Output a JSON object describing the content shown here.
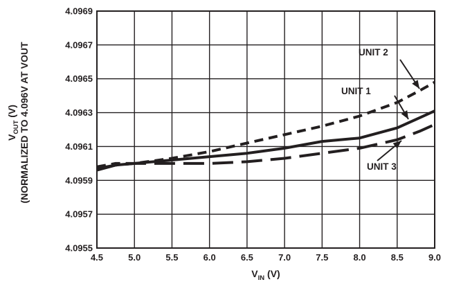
{
  "chart_data": {
    "type": "line",
    "xlabel": {
      "main": "V",
      "sub": "IN",
      "unit": " (V)"
    },
    "ylabel": {
      "main": "V",
      "sub": "OUT",
      "unit": " (V)",
      "line2": "(NORMALIZED TO 4.096V AT VOUT"
    },
    "xlim": [
      4.5,
      9.0
    ],
    "ylim": [
      4.0955,
      4.0969
    ],
    "xticks": [
      "4.5",
      "5.0",
      "5.5",
      "6.0",
      "6.5",
      "7.0",
      "7.5",
      "8.0",
      "8.5",
      "9.0"
    ],
    "yticks": [
      "4.0955",
      "4.0957",
      "4.0959",
      "4.0961",
      "4.0963",
      "4.0965",
      "4.0967",
      "4.0969"
    ],
    "grid": true,
    "series": [
      {
        "name": "UNIT 1",
        "style": "solid",
        "x": [
          4.5,
          4.75,
          5.0,
          5.5,
          6.0,
          6.5,
          7.0,
          7.5,
          8.0,
          8.5,
          8.8,
          9.0
        ],
        "y": [
          4.09597,
          4.09599,
          4.096,
          4.09602,
          4.09604,
          4.09606,
          4.09609,
          4.09613,
          4.09615,
          4.09621,
          4.09627,
          4.09631
        ]
      },
      {
        "name": "UNIT 2",
        "style": "short-dash",
        "x": [
          4.5,
          4.75,
          5.0,
          5.5,
          6.0,
          6.5,
          7.0,
          7.5,
          8.0,
          8.5,
          8.8,
          9.0
        ],
        "y": [
          4.09598,
          4.096,
          4.096,
          4.09603,
          4.09607,
          4.09612,
          4.09617,
          4.09622,
          4.09628,
          4.09636,
          4.09643,
          4.09648
        ]
      },
      {
        "name": "UNIT 3",
        "style": "long-dash",
        "x": [
          4.5,
          4.75,
          5.0,
          5.5,
          6.0,
          6.5,
          7.0,
          7.5,
          8.0,
          8.5,
          8.8,
          9.0
        ],
        "y": [
          4.09596,
          4.09599,
          4.096,
          4.096,
          4.096,
          4.09601,
          4.09603,
          4.09606,
          4.09609,
          4.09614,
          4.09619,
          4.09623
        ]
      }
    ],
    "annotations": [
      {
        "label": "UNIT 2",
        "series": 1
      },
      {
        "label": "UNIT 1",
        "series": 0
      },
      {
        "label": "UNIT 3",
        "series": 2
      }
    ]
  }
}
